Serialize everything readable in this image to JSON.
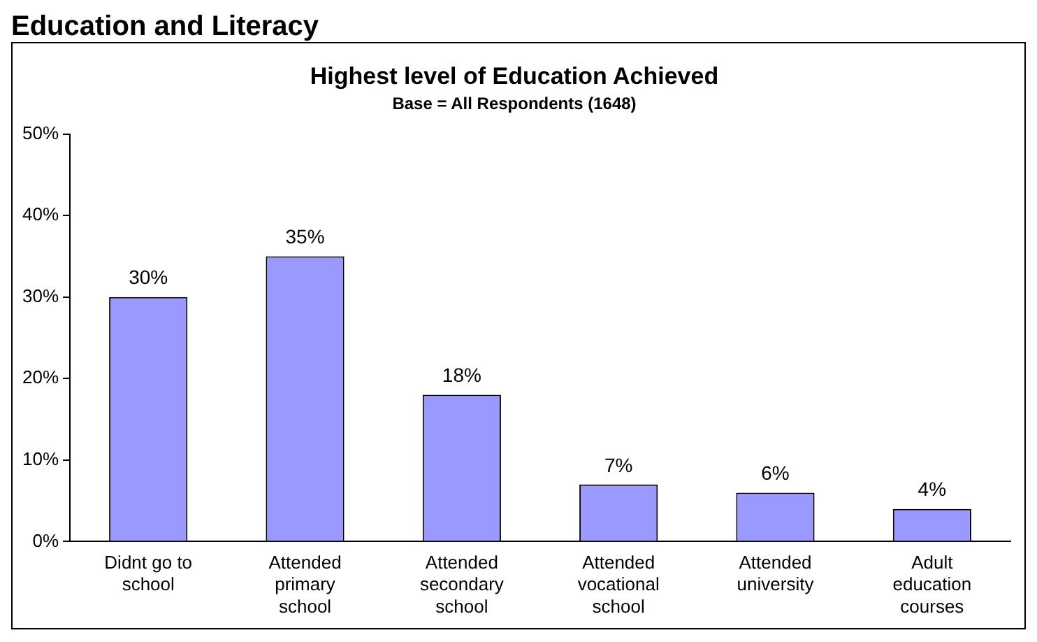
{
  "chart_data": {
    "type": "bar",
    "title": "Highest level of Education Achieved",
    "subtitle": "Base = All Respondents (1648)",
    "annotations": [
      "Education and Literacy"
    ],
    "categories": [
      "Didnt go to school",
      "Attended primary school",
      "Attended secondary school",
      "Attended vocational school",
      "Attended university",
      "Adult education courses"
    ],
    "values": [
      30,
      35,
      18,
      7,
      6,
      4
    ],
    "value_labels": [
      "30%",
      "35%",
      "18%",
      "7%",
      "6%",
      "4%"
    ],
    "color": "#9999ff",
    "ylim": [
      0,
      50
    ],
    "yticks": [
      {
        "value": 0,
        "label": "0%"
      },
      {
        "value": 10,
        "label": "10%"
      },
      {
        "value": 20,
        "label": "20%"
      },
      {
        "value": 30,
        "label": "30%"
      },
      {
        "value": 40,
        "label": "40%"
      },
      {
        "value": 50,
        "label": "50%"
      }
    ],
    "grid": false,
    "legend": false
  }
}
